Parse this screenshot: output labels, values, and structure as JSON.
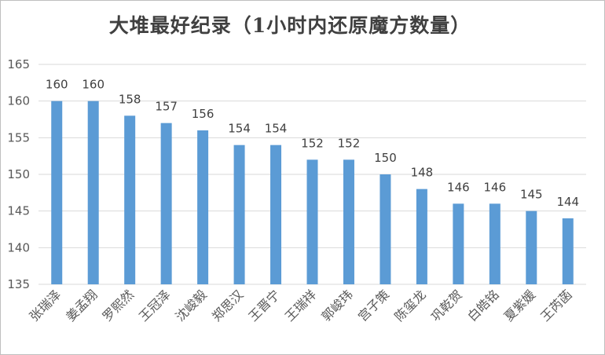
{
  "chart_data": {
    "type": "bar",
    "title": "大堆最好纪录（1小时内还原魔方数量）",
    "xlabel": "",
    "ylabel": "",
    "categories": [
      "张瑞泽",
      "姜孟翔",
      "罗熙然",
      "王冠泽",
      "沈峻毅",
      "郑思汉",
      "王晋宁",
      "王瑞祥",
      "郭峻玮",
      "宫子策",
      "陈玺龙",
      "巩乾贺",
      "白皓铭",
      "夏紫媛",
      "王芮菡"
    ],
    "values": [
      160,
      160,
      158,
      157,
      156,
      154,
      154,
      152,
      152,
      150,
      148,
      146,
      146,
      145,
      144
    ],
    "ylim": [
      135,
      165
    ],
    "yticks": [
      135,
      140,
      145,
      150,
      155,
      160,
      165
    ],
    "grid": true,
    "legend": "none",
    "bar_color": "#5b9bd5",
    "grid_color": "#d9d9d9"
  }
}
